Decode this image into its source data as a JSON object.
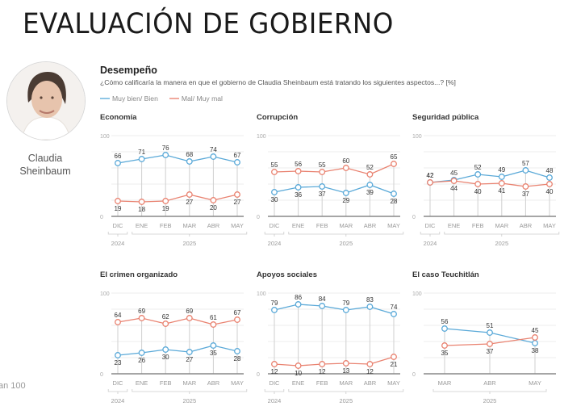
{
  "header": {
    "title": "EVALUACIÓN DE GOBIERNO"
  },
  "person": {
    "name_line1": "Claudia",
    "name_line2": "Sheinbaum"
  },
  "footnote": "an 100",
  "section": {
    "title": "Desempeño",
    "question": "¿Cómo calificaría la manera en que el gobierno de Claudia Sheinbaum está tratando los siguientes aspectos...? [%]"
  },
  "legend": [
    {
      "label": "Muy bien/ Bien",
      "color": "#8fc6e6"
    },
    {
      "label": "Mal/ Muy mal",
      "color": "#f1a99d"
    }
  ],
  "colors": {
    "good": "#5aa9d8",
    "bad": "#e98270",
    "grid": "#eeeeee",
    "axis": "#888888",
    "stem": "#cfcfcf"
  },
  "chart_data": [
    {
      "type": "line",
      "title": "Economía",
      "ylim": [
        0,
        100
      ],
      "yticks": [
        "0",
        "100"
      ],
      "categories": [
        "DIC",
        "ENE",
        "FEB",
        "MAR",
        "ABR",
        "MAY"
      ],
      "year_groups": [
        {
          "label": "2024",
          "span": 1
        },
        {
          "label": "2025",
          "span": 5
        }
      ],
      "series": [
        {
          "name": "Muy bien/ Bien",
          "values": [
            66,
            71,
            76,
            68,
            74,
            67
          ]
        },
        {
          "name": "Mal/ Muy mal",
          "values": [
            19,
            18,
            19,
            27,
            20,
            27
          ]
        }
      ]
    },
    {
      "type": "line",
      "title": "Corrupción",
      "ylim": [
        0,
        100
      ],
      "yticks": [
        "0",
        "100"
      ],
      "categories": [
        "DIC",
        "ENE",
        "FEB",
        "MAR",
        "ABR",
        "MAY"
      ],
      "year_groups": [
        {
          "label": "2024",
          "span": 1
        },
        {
          "label": "2025",
          "span": 5
        }
      ],
      "series": [
        {
          "name": "Muy bien/ Bien",
          "values": [
            30,
            36,
            37,
            29,
            39,
            28
          ]
        },
        {
          "name": "Mal/ Muy mal",
          "values": [
            55,
            56,
            55,
            60,
            52,
            65
          ]
        }
      ]
    },
    {
      "type": "line",
      "title": "Seguridad pública",
      "ylim": [
        0,
        100
      ],
      "yticks": [
        "0",
        "100"
      ],
      "categories": [
        "DIC",
        "ENE",
        "FEB",
        "MAR",
        "ABR",
        "MAY"
      ],
      "year_groups": [
        {
          "label": "2024",
          "span": 1
        },
        {
          "label": "2025",
          "span": 5
        }
      ],
      "series": [
        {
          "name": "Muy bien/ Bien",
          "values": [
            42,
            45,
            52,
            49,
            57,
            48
          ]
        },
        {
          "name": "Mal/ Muy mal",
          "values": [
            42,
            44,
            40,
            41,
            37,
            40
          ]
        }
      ]
    },
    {
      "type": "line",
      "title": "El crimen organizado",
      "ylim": [
        0,
        100
      ],
      "yticks": [
        "0",
        "100"
      ],
      "categories": [
        "DIC",
        "ENE",
        "FEB",
        "MAR",
        "ABR",
        "MAY"
      ],
      "year_groups": [
        {
          "label": "2024",
          "span": 1
        },
        {
          "label": "2025",
          "span": 5
        }
      ],
      "series": [
        {
          "name": "Muy bien/ Bien",
          "values": [
            23,
            26,
            30,
            27,
            35,
            28
          ]
        },
        {
          "name": "Mal/ Muy mal",
          "values": [
            64,
            69,
            62,
            69,
            61,
            67
          ]
        }
      ]
    },
    {
      "type": "line",
      "title": "Apoyos sociales",
      "ylim": [
        0,
        100
      ],
      "yticks": [
        "0",
        "100"
      ],
      "categories": [
        "DIC",
        "ENE",
        "FEB",
        "MAR",
        "ABR",
        "MAY"
      ],
      "year_groups": [
        {
          "label": "2024",
          "span": 1
        },
        {
          "label": "2025",
          "span": 5
        }
      ],
      "series": [
        {
          "name": "Muy bien/ Bien",
          "values": [
            79,
            86,
            84,
            79,
            83,
            74
          ]
        },
        {
          "name": "Mal/ Muy mal",
          "values": [
            12,
            10,
            12,
            13,
            12,
            21
          ]
        }
      ]
    },
    {
      "type": "line",
      "title": "El caso Teuchitlán",
      "ylim": [
        0,
        100
      ],
      "yticks": [
        "0",
        "100"
      ],
      "categories": [
        "MAR",
        "ABR",
        "MAY"
      ],
      "year_groups": [
        {
          "label": "2025",
          "span": 3
        }
      ],
      "series": [
        {
          "name": "Muy bien/ Bien",
          "values": [
            56,
            51,
            38
          ]
        },
        {
          "name": "Mal/ Muy mal",
          "values": [
            35,
            37,
            45
          ]
        }
      ]
    }
  ]
}
